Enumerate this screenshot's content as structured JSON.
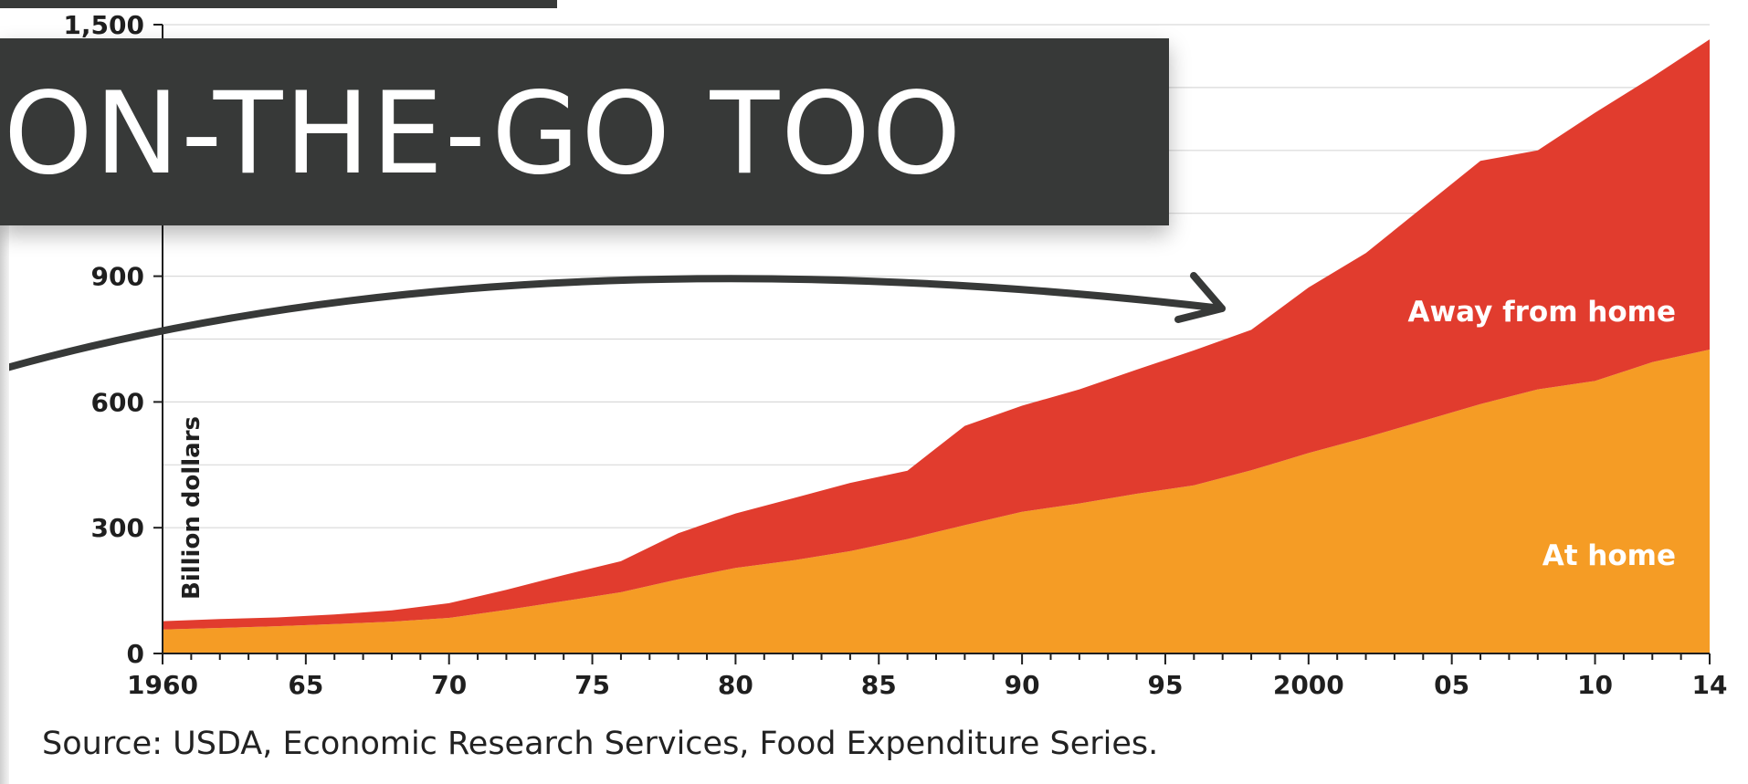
{
  "banner": {
    "text": "ON-THE-GO TOO"
  },
  "source": "Source: USDA, Economic Research Services, Food Expenditure Series.",
  "chart_data": {
    "type": "area",
    "stacked": true,
    "ylabel": "Billion dollars",
    "ylim": [
      0,
      1500
    ],
    "yticks": [
      0,
      300,
      600,
      900,
      1500
    ],
    "ytick_labels": [
      "0",
      "300",
      "600",
      "900",
      "1,500"
    ],
    "xlim": [
      1960,
      2014
    ],
    "xticks": [
      1960,
      1965,
      1970,
      1975,
      1980,
      1985,
      1990,
      1995,
      2000,
      2005,
      2010,
      2014
    ],
    "xtick_labels": [
      "1960",
      "65",
      "70",
      "75",
      "80",
      "85",
      "90",
      "95",
      "2000",
      "05",
      "10",
      "14"
    ],
    "grid": true,
    "x": [
      1960,
      1962,
      1964,
      1966,
      1968,
      1970,
      1972,
      1974,
      1976,
      1978,
      1980,
      1982,
      1984,
      1986,
      1988,
      1990,
      1992,
      1994,
      1996,
      1998,
      2000,
      2002,
      2004,
      2006,
      2008,
      2010,
      2012,
      2014
    ],
    "series": [
      {
        "name": "At home",
        "color": "#f59c25",
        "values": [
          57,
          61,
          65,
          70,
          76,
          85,
          104,
          125,
          146,
          177,
          204,
          222,
          244,
          273,
          306,
          338,
          358,
          381,
          401,
          437,
          478,
          515,
          555,
          595,
          630,
          650,
          695,
          725
        ]
      },
      {
        "name": "Away from home",
        "color": "#e13c2e",
        "values": [
          20,
          21,
          21,
          23,
          27,
          35,
          48,
          62,
          74,
          110,
          130,
          148,
          163,
          163,
          237,
          253,
          272,
          296,
          322,
          335,
          395,
          440,
          510,
          580,
          570,
          640,
          680,
          740
        ]
      }
    ]
  }
}
